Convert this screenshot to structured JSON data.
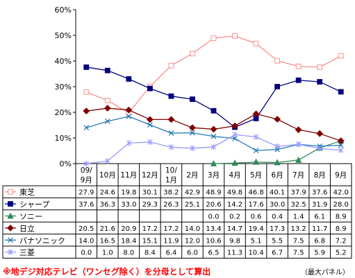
{
  "chart_data": {
    "type": "line",
    "categories": [
      "09/9月",
      "10月",
      "11月",
      "12月",
      "10/1月",
      "2月",
      "3月",
      "4月",
      "5月",
      "6月",
      "7月",
      "8月",
      "9月"
    ],
    "ylim": [
      0,
      60
    ],
    "yticks": [
      0,
      10,
      20,
      30,
      40,
      50,
      60
    ],
    "ytick_labels": [
      "0%",
      "10%",
      "20%",
      "30%",
      "40%",
      "50%",
      "60%"
    ],
    "grid": false,
    "legend": "table-left",
    "series": [
      {
        "name": "東芝",
        "color": "#ff8c8c",
        "marker": "square-open",
        "values": [
          27.9,
          24.6,
          19.8,
          30.1,
          38.2,
          42.9,
          48.9,
          49.8,
          46.8,
          40.1,
          37.9,
          37.6,
          42.0
        ],
        "labels": [
          "27.9",
          "24.6",
          "19.8",
          "30.1",
          "38.2",
          "42.9",
          "48.9",
          "49.8",
          "46.8",
          "40.1",
          "37.9",
          "37.6",
          "42.0"
        ]
      },
      {
        "name": "シャープ",
        "color": "#000080",
        "marker": "square",
        "values": [
          37.6,
          36.3,
          33.0,
          29.3,
          26.3,
          25.1,
          20.6,
          14.2,
          17.6,
          30.0,
          32.5,
          31.9,
          28.0
        ],
        "labels": [
          "37.6",
          "36.3",
          "33.0",
          "29.3",
          "26.3",
          "25.1",
          "20.6",
          "14.2",
          "17.6",
          "30.0",
          "32.5",
          "31.9",
          "28.0"
        ]
      },
      {
        "name": "ソニー",
        "color": "#2e8b57",
        "marker": "triangle",
        "values": [
          null,
          null,
          null,
          null,
          null,
          null,
          0.0,
          0.2,
          0.6,
          0.4,
          1.4,
          6.1,
          8.9
        ],
        "labels": [
          "",
          "",
          "",
          "",
          "",
          "",
          "0.0",
          "0.2",
          "0.6",
          "0.4",
          "1.4",
          "6.1",
          "8.9"
        ]
      },
      {
        "name": "日立",
        "color": "#800000",
        "marker": "diamond",
        "values": [
          20.5,
          21.6,
          20.9,
          17.2,
          17.2,
          14.0,
          13.4,
          14.7,
          19.4,
          17.3,
          13.2,
          11.7,
          8.9
        ],
        "labels": [
          "20.5",
          "21.6",
          "20.9",
          "17.2",
          "17.2",
          "14.0",
          "13.4",
          "14.7",
          "19.4",
          "17.3",
          "13.2",
          "11.7",
          "8.9"
        ]
      },
      {
        "name": "パナソニック",
        "color": "#1f77b4",
        "marker": "x",
        "values": [
          14.0,
          16.5,
          18.4,
          15.1,
          11.9,
          12.0,
          10.6,
          9.8,
          5.1,
          5.5,
          7.5,
          6.8,
          7.2
        ],
        "labels": [
          "14.0",
          "16.5",
          "18.4",
          "15.1",
          "11.9",
          "12.0",
          "10.6",
          "9.8",
          "5.1",
          "5.5",
          "7.5",
          "6.8",
          "7.2"
        ]
      },
      {
        "name": "三菱",
        "color": "#9999ff",
        "marker": "star",
        "values": [
          0.0,
          1.0,
          8.0,
          8.4,
          6.4,
          6.0,
          6.5,
          11.3,
          10.4,
          6.7,
          7.5,
          5.9,
          5.2
        ],
        "labels": [
          "0.0",
          "1.0",
          "8.0",
          "8.4",
          "6.4",
          "6.0",
          "6.5",
          "11.3",
          "10.4",
          "6.7",
          "7.5",
          "5.9",
          "5.2"
        ]
      }
    ]
  },
  "footnote": "※地デジ対応テレビ（ワンセグ除く）を分母として算出",
  "source": "（最大パネル）"
}
